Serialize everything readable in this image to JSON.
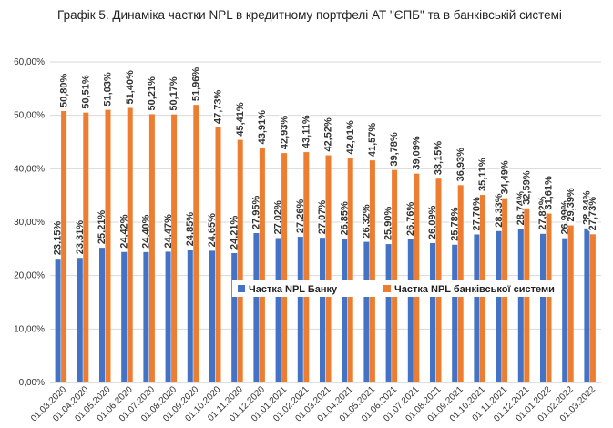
{
  "chart_data": {
    "type": "bar",
    "title": "Графік 5. Динаміка частки NPL в кредитному портфелі АТ \"ЄПБ\" та в банківській системі",
    "categories": [
      "01.03.2020",
      "01.04.2020",
      "01.05.2020",
      "01.06.2020",
      "01.07.2020",
      "01.08.2020",
      "01.09.2020",
      "01.10.2020",
      "01.11.2020",
      "01.12.2020",
      "01.01.2021",
      "01.02.2021",
      "01.03.2021",
      "01.04.2021",
      "01.05.2021",
      "01.06.2021",
      "01.07.2021",
      "01.08.2021",
      "01.09.2021",
      "01.10.2021",
      "01.11.2021",
      "01.12.2021",
      "01.01.2022",
      "01.02.2022",
      "01.03.2022"
    ],
    "series": [
      {
        "name": "Частка NPL Банку",
        "color": "#4472c4",
        "label_color": "#44546a",
        "values": [
          23.15,
          23.31,
          25.21,
          24.42,
          24.4,
          24.47,
          24.85,
          24.65,
          24.21,
          27.95,
          27.02,
          27.26,
          27.07,
          26.85,
          26.32,
          25.9,
          26.76,
          26.09,
          25.78,
          27.7,
          28.33,
          28.74,
          27.82,
          26.99,
          28.84
        ],
        "value_labels": [
          "23,15%",
          "23,31%",
          "25,21%",
          "24,42%",
          "24,40%",
          "24,47%",
          "24,85%",
          "24,65%",
          "24,21%",
          "27,95%",
          "27,02%",
          "27,26%",
          "27,07%",
          "26,85%",
          "26,32%",
          "25,90%",
          "26,76%",
          "26,09%",
          "25,78%",
          "27,70%",
          "28,33%",
          "28,74%",
          "27,82%",
          "26,99%",
          "28,84%"
        ]
      },
      {
        "name": "Частка NPL банківської системи",
        "color": "#ed7d31",
        "label_color": "#c55a11",
        "values": [
          50.8,
          50.51,
          51.03,
          51.4,
          50.21,
          50.17,
          51.96,
          47.73,
          45.41,
          43.91,
          42.93,
          43.11,
          42.52,
          42.01,
          41.57,
          39.78,
          39.09,
          38.15,
          36.93,
          35.11,
          34.49,
          32.59,
          31.61,
          29.39,
          27.73
        ],
        "value_labels": [
          "50,80%",
          "50,51%",
          "51,03%",
          "51,40%",
          "50,21%",
          "50,17%",
          "51,96%",
          "47,73%",
          "45,41%",
          "43,91%",
          "42,93%",
          "43,11%",
          "42,52%",
          "42,01%",
          "41,57%",
          "39,78%",
          "39,09%",
          "38,15%",
          "36,93%",
          "35,11%",
          "34,49%",
          "32,59%",
          "31,61%",
          "29,39%",
          "27,73%"
        ]
      }
    ],
    "ylim": [
      0,
      60
    ],
    "yticks": [
      {
        "value": 0,
        "label": "0,00%"
      },
      {
        "value": 10,
        "label": "10,00%"
      },
      {
        "value": 20,
        "label": "20,00%"
      },
      {
        "value": 30,
        "label": "30,00%"
      },
      {
        "value": 40,
        "label": "40,00%"
      },
      {
        "value": 50,
        "label": "50,00%"
      },
      {
        "value": 60,
        "label": "60,00%"
      }
    ],
    "grid": true,
    "legend": "center"
  }
}
